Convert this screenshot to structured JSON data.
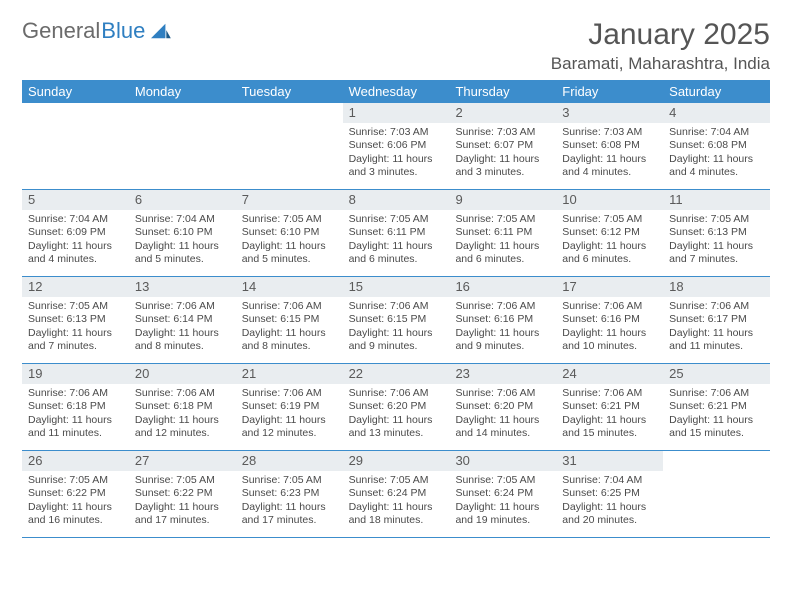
{
  "logo": {
    "text_gray": "General",
    "text_blue": "Blue"
  },
  "header": {
    "month": "January 2025",
    "location": "Baramati, Maharashtra, India"
  },
  "colors": {
    "header_bar": "#3c8dcc",
    "daynum_bg": "#e9edf0",
    "week_border": "#3c8dcc",
    "text": "#4a4a4a",
    "logo_gray": "#6b6b6b",
    "logo_blue": "#2f7fc1"
  },
  "days_of_week": [
    "Sunday",
    "Monday",
    "Tuesday",
    "Wednesday",
    "Thursday",
    "Friday",
    "Saturday"
  ],
  "weeks": [
    [
      {
        "n": "",
        "sunrise": "",
        "sunset": "",
        "daylight": ""
      },
      {
        "n": "",
        "sunrise": "",
        "sunset": "",
        "daylight": ""
      },
      {
        "n": "",
        "sunrise": "",
        "sunset": "",
        "daylight": ""
      },
      {
        "n": "1",
        "sunrise": "Sunrise: 7:03 AM",
        "sunset": "Sunset: 6:06 PM",
        "daylight": "Daylight: 11 hours and 3 minutes."
      },
      {
        "n": "2",
        "sunrise": "Sunrise: 7:03 AM",
        "sunset": "Sunset: 6:07 PM",
        "daylight": "Daylight: 11 hours and 3 minutes."
      },
      {
        "n": "3",
        "sunrise": "Sunrise: 7:03 AM",
        "sunset": "Sunset: 6:08 PM",
        "daylight": "Daylight: 11 hours and 4 minutes."
      },
      {
        "n": "4",
        "sunrise": "Sunrise: 7:04 AM",
        "sunset": "Sunset: 6:08 PM",
        "daylight": "Daylight: 11 hours and 4 minutes."
      }
    ],
    [
      {
        "n": "5",
        "sunrise": "Sunrise: 7:04 AM",
        "sunset": "Sunset: 6:09 PM",
        "daylight": "Daylight: 11 hours and 4 minutes."
      },
      {
        "n": "6",
        "sunrise": "Sunrise: 7:04 AM",
        "sunset": "Sunset: 6:10 PM",
        "daylight": "Daylight: 11 hours and 5 minutes."
      },
      {
        "n": "7",
        "sunrise": "Sunrise: 7:05 AM",
        "sunset": "Sunset: 6:10 PM",
        "daylight": "Daylight: 11 hours and 5 minutes."
      },
      {
        "n": "8",
        "sunrise": "Sunrise: 7:05 AM",
        "sunset": "Sunset: 6:11 PM",
        "daylight": "Daylight: 11 hours and 6 minutes."
      },
      {
        "n": "9",
        "sunrise": "Sunrise: 7:05 AM",
        "sunset": "Sunset: 6:11 PM",
        "daylight": "Daylight: 11 hours and 6 minutes."
      },
      {
        "n": "10",
        "sunrise": "Sunrise: 7:05 AM",
        "sunset": "Sunset: 6:12 PM",
        "daylight": "Daylight: 11 hours and 6 minutes."
      },
      {
        "n": "11",
        "sunrise": "Sunrise: 7:05 AM",
        "sunset": "Sunset: 6:13 PM",
        "daylight": "Daylight: 11 hours and 7 minutes."
      }
    ],
    [
      {
        "n": "12",
        "sunrise": "Sunrise: 7:05 AM",
        "sunset": "Sunset: 6:13 PM",
        "daylight": "Daylight: 11 hours and 7 minutes."
      },
      {
        "n": "13",
        "sunrise": "Sunrise: 7:06 AM",
        "sunset": "Sunset: 6:14 PM",
        "daylight": "Daylight: 11 hours and 8 minutes."
      },
      {
        "n": "14",
        "sunrise": "Sunrise: 7:06 AM",
        "sunset": "Sunset: 6:15 PM",
        "daylight": "Daylight: 11 hours and 8 minutes."
      },
      {
        "n": "15",
        "sunrise": "Sunrise: 7:06 AM",
        "sunset": "Sunset: 6:15 PM",
        "daylight": "Daylight: 11 hours and 9 minutes."
      },
      {
        "n": "16",
        "sunrise": "Sunrise: 7:06 AM",
        "sunset": "Sunset: 6:16 PM",
        "daylight": "Daylight: 11 hours and 9 minutes."
      },
      {
        "n": "17",
        "sunrise": "Sunrise: 7:06 AM",
        "sunset": "Sunset: 6:16 PM",
        "daylight": "Daylight: 11 hours and 10 minutes."
      },
      {
        "n": "18",
        "sunrise": "Sunrise: 7:06 AM",
        "sunset": "Sunset: 6:17 PM",
        "daylight": "Daylight: 11 hours and 11 minutes."
      }
    ],
    [
      {
        "n": "19",
        "sunrise": "Sunrise: 7:06 AM",
        "sunset": "Sunset: 6:18 PM",
        "daylight": "Daylight: 11 hours and 11 minutes."
      },
      {
        "n": "20",
        "sunrise": "Sunrise: 7:06 AM",
        "sunset": "Sunset: 6:18 PM",
        "daylight": "Daylight: 11 hours and 12 minutes."
      },
      {
        "n": "21",
        "sunrise": "Sunrise: 7:06 AM",
        "sunset": "Sunset: 6:19 PM",
        "daylight": "Daylight: 11 hours and 12 minutes."
      },
      {
        "n": "22",
        "sunrise": "Sunrise: 7:06 AM",
        "sunset": "Sunset: 6:20 PM",
        "daylight": "Daylight: 11 hours and 13 minutes."
      },
      {
        "n": "23",
        "sunrise": "Sunrise: 7:06 AM",
        "sunset": "Sunset: 6:20 PM",
        "daylight": "Daylight: 11 hours and 14 minutes."
      },
      {
        "n": "24",
        "sunrise": "Sunrise: 7:06 AM",
        "sunset": "Sunset: 6:21 PM",
        "daylight": "Daylight: 11 hours and 15 minutes."
      },
      {
        "n": "25",
        "sunrise": "Sunrise: 7:06 AM",
        "sunset": "Sunset: 6:21 PM",
        "daylight": "Daylight: 11 hours and 15 minutes."
      }
    ],
    [
      {
        "n": "26",
        "sunrise": "Sunrise: 7:05 AM",
        "sunset": "Sunset: 6:22 PM",
        "daylight": "Daylight: 11 hours and 16 minutes."
      },
      {
        "n": "27",
        "sunrise": "Sunrise: 7:05 AM",
        "sunset": "Sunset: 6:22 PM",
        "daylight": "Daylight: 11 hours and 17 minutes."
      },
      {
        "n": "28",
        "sunrise": "Sunrise: 7:05 AM",
        "sunset": "Sunset: 6:23 PM",
        "daylight": "Daylight: 11 hours and 17 minutes."
      },
      {
        "n": "29",
        "sunrise": "Sunrise: 7:05 AM",
        "sunset": "Sunset: 6:24 PM",
        "daylight": "Daylight: 11 hours and 18 minutes."
      },
      {
        "n": "30",
        "sunrise": "Sunrise: 7:05 AM",
        "sunset": "Sunset: 6:24 PM",
        "daylight": "Daylight: 11 hours and 19 minutes."
      },
      {
        "n": "31",
        "sunrise": "Sunrise: 7:04 AM",
        "sunset": "Sunset: 6:25 PM",
        "daylight": "Daylight: 11 hours and 20 minutes."
      },
      {
        "n": "",
        "sunrise": "",
        "sunset": "",
        "daylight": ""
      }
    ]
  ]
}
